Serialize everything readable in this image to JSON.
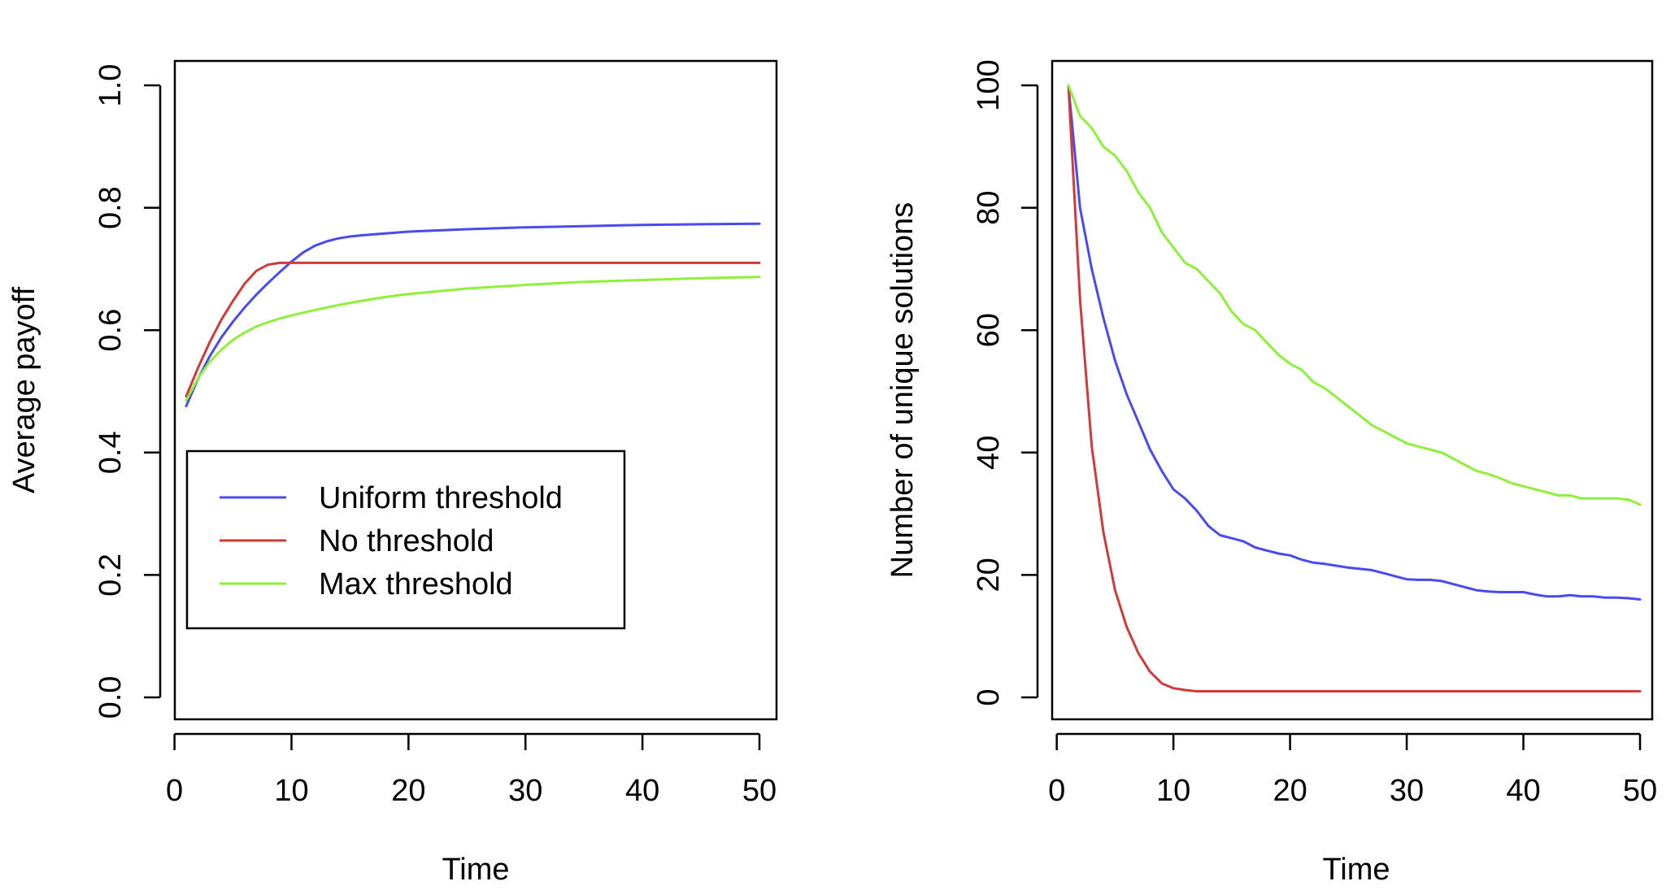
{
  "chart_data": [
    {
      "type": "line",
      "title": "",
      "xlabel": "Time",
      "ylabel": "Average payoff",
      "xlim": [
        1,
        50
      ],
      "ylim": [
        0,
        1
      ],
      "xticks": [
        0,
        10,
        20,
        30,
        40,
        50
      ],
      "yticks": [
        0.0,
        0.2,
        0.4,
        0.6,
        0.8,
        1.0
      ],
      "ytick_labels": [
        "0.0",
        "0.2",
        "0.4",
        "0.6",
        "0.8",
        "1.0"
      ],
      "grid": false,
      "legend": {
        "placement": "bottom-left",
        "entries": [
          "Uniform threshold",
          "No threshold",
          "Max threshold"
        ]
      },
      "series": [
        {
          "name": "Uniform threshold",
          "color": "#4a4af0",
          "x": [
            1,
            2,
            3,
            4,
            5,
            6,
            7,
            8,
            9,
            10,
            11,
            12,
            13,
            14,
            15,
            16,
            18,
            20,
            25,
            30,
            35,
            40,
            45,
            50
          ],
          "y": [
            0.476,
            0.52,
            0.557,
            0.588,
            0.614,
            0.637,
            0.658,
            0.677,
            0.695,
            0.712,
            0.727,
            0.738,
            0.745,
            0.75,
            0.753,
            0.755,
            0.758,
            0.761,
            0.765,
            0.768,
            0.77,
            0.772,
            0.773,
            0.774
          ]
        },
        {
          "name": "No threshold",
          "color": "#d03a3a",
          "x": [
            1,
            2,
            3,
            4,
            5,
            6,
            7,
            8,
            9,
            10,
            15,
            20,
            30,
            40,
            50
          ],
          "y": [
            0.492,
            0.538,
            0.58,
            0.617,
            0.648,
            0.676,
            0.697,
            0.707,
            0.71,
            0.71,
            0.71,
            0.71,
            0.71,
            0.71,
            0.71
          ]
        },
        {
          "name": "Max threshold",
          "color": "#8ff03a",
          "x": [
            1,
            2,
            3,
            4,
            5,
            6,
            7,
            8,
            9,
            10,
            12,
            14,
            16,
            18,
            20,
            25,
            30,
            35,
            40,
            45,
            50
          ],
          "y": [
            0.485,
            0.521,
            0.548,
            0.568,
            0.584,
            0.596,
            0.606,
            0.613,
            0.619,
            0.624,
            0.633,
            0.641,
            0.648,
            0.654,
            0.659,
            0.668,
            0.674,
            0.679,
            0.682,
            0.685,
            0.687
          ]
        }
      ]
    },
    {
      "type": "line",
      "title": "",
      "xlabel": "Time",
      "ylabel": "Number of unique solutions",
      "xlim": [
        1,
        50
      ],
      "ylim": [
        0,
        100
      ],
      "xticks": [
        0,
        10,
        20,
        30,
        40,
        50
      ],
      "yticks": [
        0,
        20,
        40,
        60,
        80,
        100
      ],
      "ytick_labels": [
        "0",
        "20",
        "40",
        "60",
        "80",
        "100"
      ],
      "grid": false,
      "series": [
        {
          "name": "Uniform threshold",
          "color": "#4a4af0",
          "x": [
            1,
            2,
            3,
            4,
            5,
            6,
            7,
            8,
            9,
            10,
            11,
            12,
            13,
            14,
            15,
            16,
            17,
            18,
            19,
            20,
            21,
            22,
            23,
            24,
            25,
            26,
            27,
            28,
            29,
            30,
            31,
            32,
            33,
            34,
            35,
            36,
            37,
            38,
            39,
            40,
            41,
            42,
            43,
            44,
            45,
            46,
            47,
            48,
            49,
            50
          ],
          "y": [
            100,
            80,
            70,
            62,
            55,
            49.5,
            45,
            40.5,
            37,
            34,
            32.5,
            30.5,
            28,
            26.5,
            26,
            25.5,
            24.5,
            24,
            23.5,
            23.2,
            22.5,
            22,
            21.8,
            21.5,
            21.2,
            21,
            20.8,
            20.3,
            19.8,
            19.3,
            19.2,
            19.2,
            19,
            18.5,
            18,
            17.5,
            17.3,
            17.2,
            17.2,
            17.2,
            16.8,
            16.5,
            16.5,
            16.7,
            16.5,
            16.5,
            16.3,
            16.3,
            16.2,
            16
          ]
        },
        {
          "name": "No threshold",
          "color": "#d03a3a",
          "x": [
            1,
            2,
            3,
            4,
            5,
            6,
            7,
            8,
            9,
            10,
            11,
            12,
            13,
            15,
            20,
            30,
            40,
            50
          ],
          "y": [
            100,
            65,
            41,
            27,
            17.5,
            11.5,
            7.2,
            4.2,
            2.3,
            1.5,
            1.2,
            1,
            1,
            1,
            1,
            1,
            1,
            1
          ]
        },
        {
          "name": "Max threshold",
          "color": "#8ff03a",
          "x": [
            1,
            2,
            3,
            4,
            5,
            6,
            7,
            8,
            9,
            10,
            11,
            12,
            13,
            14,
            15,
            16,
            17,
            18,
            19,
            20,
            21,
            22,
            23,
            24,
            25,
            26,
            27,
            28,
            29,
            30,
            31,
            32,
            33,
            34,
            35,
            36,
            37,
            38,
            39,
            40,
            41,
            42,
            43,
            44,
            45,
            46,
            47,
            48,
            49,
            50
          ],
          "y": [
            100,
            95,
            93,
            90,
            88.5,
            86,
            82.5,
            80,
            76,
            73.5,
            71,
            70,
            68,
            66,
            63,
            61,
            60,
            58,
            56,
            54.5,
            53.5,
            51.5,
            50.5,
            49,
            47.5,
            46,
            44.5,
            43.5,
            42.5,
            41.5,
            41,
            40.5,
            40,
            39,
            38,
            37,
            36.5,
            35.8,
            35,
            34.5,
            34,
            33.5,
            33,
            33,
            32.5,
            32.5,
            32.5,
            32.5,
            32.3,
            31.5
          ]
        }
      ]
    }
  ]
}
